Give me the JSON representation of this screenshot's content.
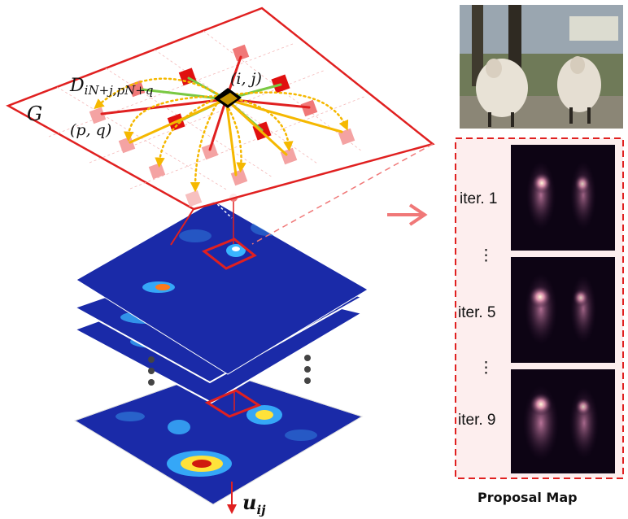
{
  "diagram": {
    "grid_label": "G",
    "edge_label_base": "D",
    "edge_label_sub": "iN+j,pN+q",
    "center_node_label": "(i, j)",
    "neighbor_node_label": "(p, q)",
    "output_label_base": "u",
    "output_label_sub": "ij",
    "photo_description": "two sheep",
    "proposal_caption": "Proposal Map",
    "iterations": [
      {
        "label": "iter. 1"
      },
      {
        "label": "iter. 5"
      },
      {
        "label": "iter. 9"
      }
    ],
    "ellipsis": "⋮",
    "stack_ellipsis": "⋮",
    "colors": {
      "frame_red": "#e02020",
      "dash_red": "#e02020",
      "arrow_pink": "#f07878",
      "heat_bg": "#1a2aa8",
      "arrow_yellow": "#f5b800"
    }
  }
}
